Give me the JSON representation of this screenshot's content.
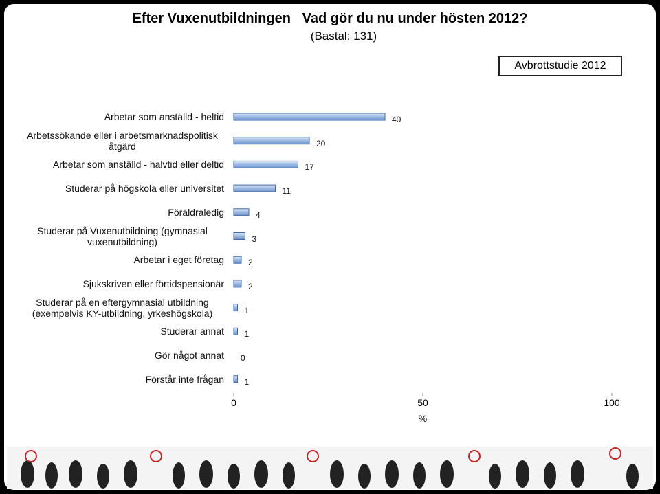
{
  "chart_data": {
    "type": "barh",
    "title": "Efter Vuxenutbildningen   Vad gör du nu under hösten 2012?",
    "subtitle": "(Bastal: 131)",
    "legend_box": "Avbrottstudie 2012",
    "xlabel": "%",
    "categories": [
      "Arbetar som anställd - heltid",
      "Arbetssökande eller i arbetsmarknadspolitisk åtgärd",
      "Arbetar som anställd - halvtid eller deltid",
      "Studerar på högskola eller universitet",
      "Föräldraledig",
      "Studerar på Vuxenutbildning (gymnasial vuxenutbildning)",
      "Arbetar i eget företag",
      "Sjukskriven eller förtidspensionär",
      "Studerar på en eftergymnasial utbildning (exempelvis KY-utbildning, yrkeshögskola)",
      "Studerar annat",
      "Gör något annat",
      "Förstår inte frågan"
    ],
    "values": [
      40,
      20,
      17,
      11,
      4,
      3,
      2,
      2,
      1,
      1,
      0,
      1
    ],
    "color": "#9db9e3",
    "xlim": [
      0,
      100
    ],
    "xticks": [
      0,
      50,
      100
    ]
  }
}
